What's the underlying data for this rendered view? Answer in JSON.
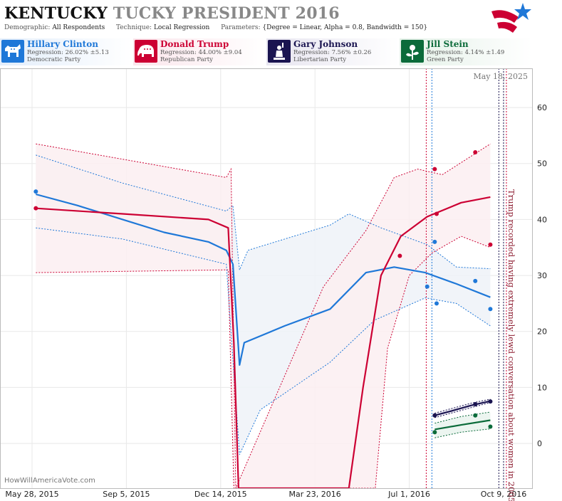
{
  "header": {
    "title_part1": "KENTUCKY",
    "title_part2": "TUCKY PRESIDENT 2016",
    "demographic_label": "Demographic:",
    "demographic_value": "All Respondents",
    "technique_label": "Technique:",
    "technique_value": "Local Regression",
    "parameters_label": "Parameters:",
    "parameters_value": "{Degree = Linear, Alpha = 0.8, Bandwidth = 150}"
  },
  "candidates": [
    {
      "name": "Hillary Clinton",
      "regression": "Regression: 26.02% ±5.13",
      "party": "Democratic Party",
      "color": "#1f78d8",
      "icon": "donkey-icon"
    },
    {
      "name": "Donald Trump",
      "regression": "Regression: 44.00% ±9.04",
      "party": "Republican Party",
      "color": "#cc0033",
      "icon": "elephant-icon"
    },
    {
      "name": "Gary Johnson",
      "regression": "Regression: 7.56% ±0.26",
      "party": "Libertarian Party",
      "color": "#1a1450",
      "icon": "statue-of-liberty-icon"
    },
    {
      "name": "Jill Stein",
      "regression": "Regression: 4.14% ±1.49",
      "party": "Green Party",
      "color": "#0b6b3a",
      "icon": "flower-icon"
    }
  ],
  "chart_data": {
    "type": "line",
    "date_stamp": "May 18, 2025",
    "watermark": "HowWillAmericaVote.com",
    "annotation": "Trump recorded having extremely lewd conversation about women in 2005",
    "annotation_date": "2016-10-07",
    "x_ticks": [
      {
        "date": "2015-05-28",
        "label": "May 28, 2015"
      },
      {
        "date": "2015-09-05",
        "label": "Sep 5, 2015"
      },
      {
        "date": "2015-12-14",
        "label": "Dec 14, 2015"
      },
      {
        "date": "2016-03-23",
        "label": "Mar 23, 2016"
      },
      {
        "date": "2016-07-01",
        "label": "Jul 1, 2016"
      },
      {
        "date": "2016-10-09",
        "label": "Oct 9, 2016"
      }
    ],
    "xlim": [
      "2015-04-24",
      "2016-11-09"
    ],
    "ylim": [
      -8,
      67
    ],
    "y_ticks": [
      0,
      10,
      20,
      30,
      40,
      50,
      60
    ],
    "y_side": "right",
    "event_lines": [
      {
        "date": "2016-07-19",
        "color": "#cc0033"
      },
      {
        "date": "2016-07-25",
        "color": "#1f78d8"
      },
      {
        "date": "2016-10-04",
        "color": "#1a1450"
      },
      {
        "date": "2016-10-09",
        "color": "#1a1450"
      },
      {
        "date": "2016-10-12",
        "color": "#cc0033"
      }
    ],
    "series": [
      {
        "name": "Hillary Clinton",
        "color": "#1f78d8",
        "fill": "#eef2f8",
        "trend": [
          {
            "x": "2015-06-01",
            "y": 44.5
          },
          {
            "x": "2015-07-15",
            "y": 42.5
          },
          {
            "x": "2015-09-01",
            "y": 40.0
          },
          {
            "x": "2015-10-15",
            "y": 37.7
          },
          {
            "x": "2015-12-01",
            "y": 36.0
          },
          {
            "x": "2015-12-20",
            "y": 34.5
          },
          {
            "x": "2015-12-27",
            "y": 32.0
          },
          {
            "x": "2016-01-03",
            "y": 14.0
          },
          {
            "x": "2016-01-08",
            "y": 18.0
          },
          {
            "x": "2016-02-20",
            "y": 21.0
          },
          {
            "x": "2016-04-08",
            "y": 24.0
          },
          {
            "x": "2016-05-16",
            "y": 30.5
          },
          {
            "x": "2016-06-15",
            "y": 31.5
          },
          {
            "x": "2016-07-18",
            "y": 30.5
          },
          {
            "x": "2016-08-20",
            "y": 28.5
          },
          {
            "x": "2016-09-25",
            "y": 26.1
          }
        ],
        "upper": [
          {
            "x": "2015-06-01",
            "y": 51.5
          },
          {
            "x": "2015-09-01",
            "y": 46.5
          },
          {
            "x": "2015-12-20",
            "y": 41.5
          },
          {
            "x": "2015-12-27",
            "y": 42.5
          },
          {
            "x": "2016-01-03",
            "y": 31.0
          },
          {
            "x": "2016-01-12",
            "y": 34.5
          },
          {
            "x": "2016-04-08",
            "y": 39.0
          },
          {
            "x": "2016-04-28",
            "y": 41.0
          },
          {
            "x": "2016-06-01",
            "y": 38.5
          },
          {
            "x": "2016-07-20",
            "y": 35.5
          },
          {
            "x": "2016-08-20",
            "y": 31.5
          },
          {
            "x": "2016-09-25",
            "y": 31.2
          }
        ],
        "lower": [
          {
            "x": "2015-06-01",
            "y": 38.5
          },
          {
            "x": "2015-09-01",
            "y": 36.5
          },
          {
            "x": "2015-12-20",
            "y": 32.0
          },
          {
            "x": "2016-01-03",
            "y": -2.0
          },
          {
            "x": "2016-01-25",
            "y": 6.0
          },
          {
            "x": "2016-04-08",
            "y": 14.5
          },
          {
            "x": "2016-05-25",
            "y": 22.0
          },
          {
            "x": "2016-07-18",
            "y": 26.0
          },
          {
            "x": "2016-08-20",
            "y": 25.0
          },
          {
            "x": "2016-09-25",
            "y": 21.0
          }
        ],
        "points": [
          {
            "x": "2015-06-01",
            "y": 45.0
          },
          {
            "x": "2016-07-20",
            "y": 28.0
          },
          {
            "x": "2016-07-28",
            "y": 36.0
          },
          {
            "x": "2016-07-30",
            "y": 25.0
          },
          {
            "x": "2016-09-09",
            "y": 29.0
          },
          {
            "x": "2016-09-25",
            "y": 24.0
          }
        ]
      },
      {
        "name": "Donald Trump",
        "color": "#cc0033",
        "fill": "#fbeef1",
        "trend": [
          {
            "x": "2015-06-01",
            "y": 42.0
          },
          {
            "x": "2015-09-01",
            "y": 41.0
          },
          {
            "x": "2015-12-01",
            "y": 40.0
          },
          {
            "x": "2015-12-22",
            "y": 38.5
          },
          {
            "x": "2015-12-28",
            "y": 18.0
          },
          {
            "x": "2016-01-02",
            "y": -8.0
          },
          {
            "x": "2016-04-28",
            "y": -8.0
          },
          {
            "x": "2016-05-13",
            "y": 10.0
          },
          {
            "x": "2016-06-01",
            "y": 30.0
          },
          {
            "x": "2016-06-22",
            "y": 37.0
          },
          {
            "x": "2016-07-20",
            "y": 40.5
          },
          {
            "x": "2016-08-25",
            "y": 43.0
          },
          {
            "x": "2016-09-25",
            "y": 44.0
          }
        ],
        "upper": [
          {
            "x": "2015-06-01",
            "y": 53.5
          },
          {
            "x": "2015-12-20",
            "y": 47.5
          },
          {
            "x": "2015-12-25",
            "y": 49.0
          },
          {
            "x": "2015-12-30",
            "y": -8.0
          },
          {
            "x": "2016-04-01",
            "y": 28.0
          },
          {
            "x": "2016-05-16",
            "y": 38.0
          },
          {
            "x": "2016-06-15",
            "y": 47.5
          },
          {
            "x": "2016-07-10",
            "y": 49.0
          },
          {
            "x": "2016-08-05",
            "y": 48.0
          },
          {
            "x": "2016-09-25",
            "y": 53.5
          }
        ],
        "lower": [
          {
            "x": "2015-06-01",
            "y": 30.5
          },
          {
            "x": "2015-12-22",
            "y": 31.0
          },
          {
            "x": "2015-12-28",
            "y": -8.0
          },
          {
            "x": "2016-05-26",
            "y": -8.0
          },
          {
            "x": "2016-06-08",
            "y": 17.0
          },
          {
            "x": "2016-07-01",
            "y": 30.0
          },
          {
            "x": "2016-07-25",
            "y": 34.0
          },
          {
            "x": "2016-08-25",
            "y": 37.0
          },
          {
            "x": "2016-09-25",
            "y": 35.0
          }
        ],
        "points": [
          {
            "x": "2015-06-01",
            "y": 42.0
          },
          {
            "x": "2016-06-21",
            "y": 33.5
          },
          {
            "x": "2016-07-28",
            "y": 49.0
          },
          {
            "x": "2016-07-30",
            "y": 41.0
          },
          {
            "x": "2016-09-09",
            "y": 52.0
          },
          {
            "x": "2016-09-25",
            "y": 35.5
          }
        ]
      },
      {
        "name": "Gary Johnson",
        "color": "#1a1450",
        "fill": "#ecebf4",
        "trend": [
          {
            "x": "2016-07-28",
            "y": 5.0
          },
          {
            "x": "2016-08-15",
            "y": 5.8
          },
          {
            "x": "2016-09-05",
            "y": 6.8
          },
          {
            "x": "2016-09-25",
            "y": 7.56
          }
        ],
        "upper": [
          {
            "x": "2016-07-28",
            "y": 5.4
          },
          {
            "x": "2016-09-05",
            "y": 7.2
          },
          {
            "x": "2016-09-25",
            "y": 7.9
          }
        ],
        "lower": [
          {
            "x": "2016-07-28",
            "y": 4.6
          },
          {
            "x": "2016-09-05",
            "y": 6.4
          },
          {
            "x": "2016-09-25",
            "y": 7.3
          }
        ],
        "points": [
          {
            "x": "2016-07-28",
            "y": 5.0
          },
          {
            "x": "2016-09-09",
            "y": 7.0
          },
          {
            "x": "2016-09-25",
            "y": 7.5
          }
        ]
      },
      {
        "name": "Jill Stein",
        "color": "#0b6b3a",
        "fill": "#e9f3ed",
        "trend": [
          {
            "x": "2016-07-28",
            "y": 2.5
          },
          {
            "x": "2016-08-25",
            "y": 3.3
          },
          {
            "x": "2016-09-25",
            "y": 4.14
          }
        ],
        "upper": [
          {
            "x": "2016-07-28",
            "y": 3.6
          },
          {
            "x": "2016-08-25",
            "y": 4.8
          },
          {
            "x": "2016-09-25",
            "y": 5.6
          }
        ],
        "lower": [
          {
            "x": "2016-07-28",
            "y": 1.0
          },
          {
            "x": "2016-08-25",
            "y": 2.0
          },
          {
            "x": "2016-09-25",
            "y": 2.6
          }
        ],
        "points": [
          {
            "x": "2016-07-28",
            "y": 2.0
          },
          {
            "x": "2016-09-09",
            "y": 5.0
          },
          {
            "x": "2016-09-25",
            "y": 3.0
          }
        ]
      }
    ]
  }
}
